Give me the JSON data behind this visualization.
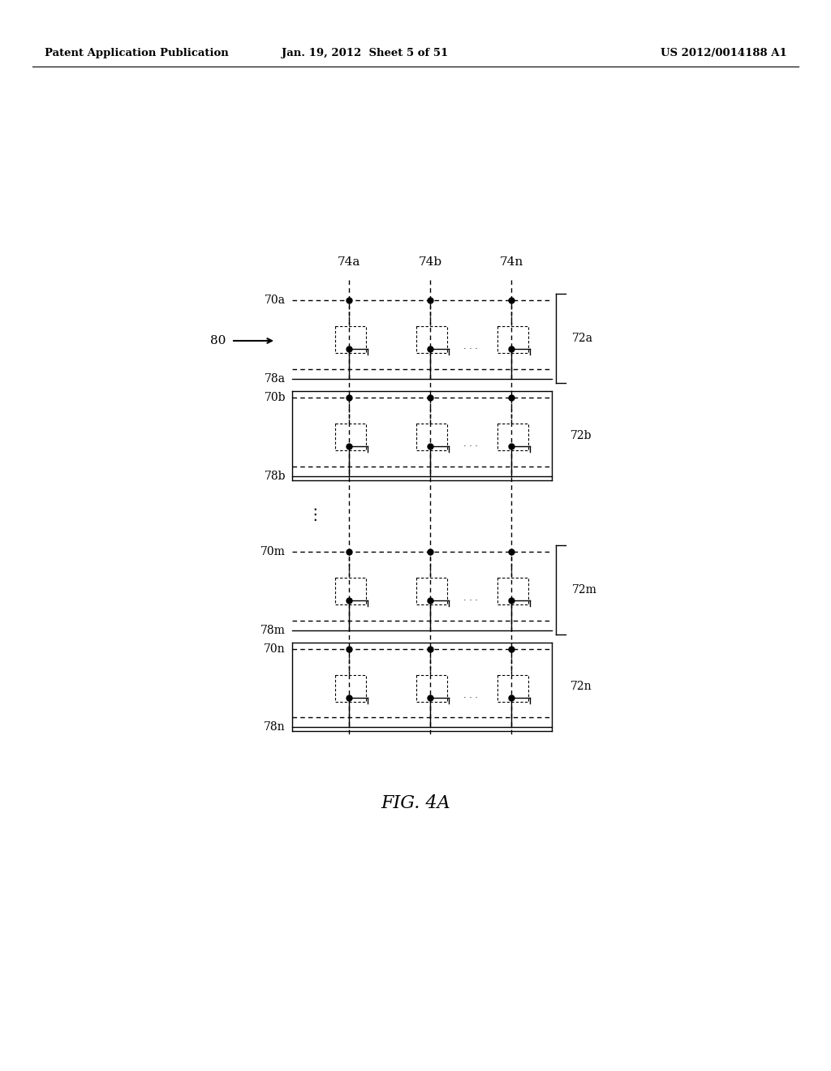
{
  "header_left": "Patent Application Publication",
  "header_center": "Jan. 19, 2012  Sheet 5 of 51",
  "header_right": "US 2012/0014188 A1",
  "figure_label": "FIG. 4A",
  "col_labels": [
    "74a",
    "74b",
    "74n"
  ],
  "row_pairs": [
    {
      "wl": "70a",
      "sl": "78a",
      "label": "72a",
      "box": false
    },
    {
      "wl": "70b",
      "sl": "78b",
      "label": "72b",
      "box": true
    },
    {
      "wl": "70m",
      "sl": "78m",
      "label": "72m",
      "box": false
    },
    {
      "wl": "70n",
      "sl": "78n",
      "label": "72n",
      "box": true
    }
  ],
  "arrow_label": "80",
  "bg_color": "#ffffff",
  "line_color": "#000000"
}
